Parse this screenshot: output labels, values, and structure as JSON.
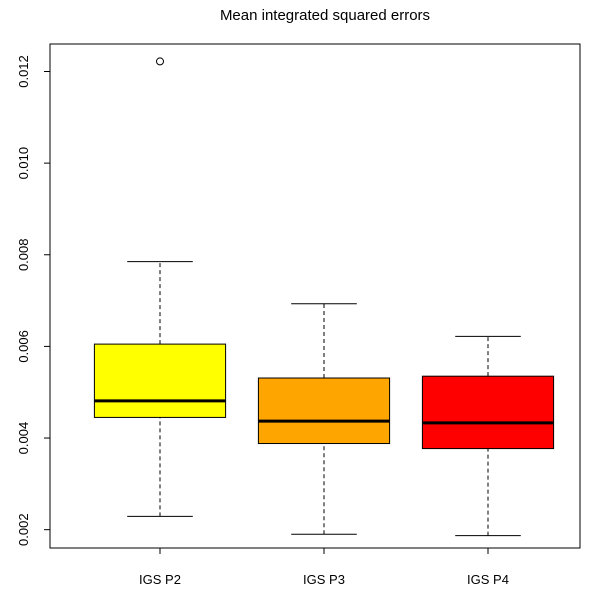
{
  "chart_data": {
    "type": "box",
    "title": "Mean integrated squared errors",
    "xlabel": "",
    "ylabel": "",
    "ylim": [
      0.0016,
      0.0126
    ],
    "yticks": [
      0.002,
      0.004,
      0.006,
      0.008,
      0.01,
      0.012
    ],
    "ytick_labels": [
      "0.002",
      "0.004",
      "0.006",
      "0.008",
      "0.010",
      "0.012"
    ],
    "categories": [
      "IGS P2",
      "IGS P3",
      "IGS P4"
    ],
    "boxes": [
      {
        "label": "IGS P2",
        "color": "#FFFF00",
        "whisker_low": 0.00229,
        "q1": 0.00445,
        "median": 0.00481,
        "q3": 0.00605,
        "whisker_high": 0.00785,
        "outliers": [
          0.01222
        ]
      },
      {
        "label": "IGS P3",
        "color": "#FFA500",
        "whisker_low": 0.0019,
        "q1": 0.00388,
        "median": 0.00437,
        "q3": 0.00531,
        "whisker_high": 0.00693,
        "outliers": []
      },
      {
        "label": "IGS P4",
        "color": "#FF0000",
        "whisker_low": 0.00187,
        "q1": 0.00377,
        "median": 0.00433,
        "q3": 0.00535,
        "whisker_high": 0.00622,
        "outliers": []
      }
    ],
    "grid": false,
    "legend": "none"
  }
}
